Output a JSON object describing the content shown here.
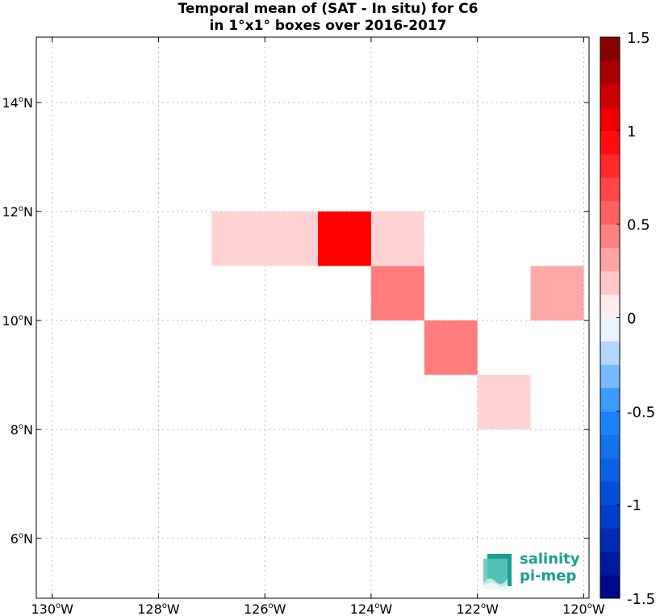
{
  "title_line1": "Temporal mean of (SAT - In situ) for C6",
  "title_line2": "in 1°x1° boxes over 2016-2017",
  "map": {
    "lon_range": [
      -130.3,
      -119.9
    ],
    "lat_range": [
      4.9,
      15.2
    ],
    "lon_ticks": [
      {
        "value": -130,
        "label": "130°W"
      },
      {
        "value": -128,
        "label": "128°W"
      },
      {
        "value": -126,
        "label": "126°W"
      },
      {
        "value": -124,
        "label": "124°W"
      },
      {
        "value": -122,
        "label": "122°W"
      },
      {
        "value": -120,
        "label": "120°W"
      }
    ],
    "lat_ticks": [
      {
        "value": 6,
        "label": "6°N"
      },
      {
        "value": 8,
        "label": "8°N"
      },
      {
        "value": 10,
        "label": "10°N"
      },
      {
        "value": 12,
        "label": "12°N"
      },
      {
        "value": 14,
        "label": "14°N"
      }
    ],
    "grid": true,
    "boxes": [
      {
        "lon": -127,
        "lat": 11,
        "value": 0.15
      },
      {
        "lon": -126,
        "lat": 11,
        "value": 0.15
      },
      {
        "lon": -125,
        "lat": 11,
        "value": 1.0
      },
      {
        "lon": -124,
        "lat": 11,
        "value": 0.15
      },
      {
        "lon": -124,
        "lat": 10,
        "value": 0.45
      },
      {
        "lon": -121,
        "lat": 10,
        "value": 0.3
      },
      {
        "lon": -123,
        "lat": 9,
        "value": 0.45
      },
      {
        "lon": -122,
        "lat": 8,
        "value": 0.15
      }
    ]
  },
  "colorbar": {
    "min": -1.5,
    "max": 1.5,
    "levels": 24,
    "ticks": [
      {
        "value": -1.5,
        "label": "-1.5"
      },
      {
        "value": -1,
        "label": "-1"
      },
      {
        "value": -0.5,
        "label": "-0.5"
      },
      {
        "value": 0,
        "label": "0"
      },
      {
        "value": 0.5,
        "label": "0.5"
      },
      {
        "value": 1,
        "label": "1"
      },
      {
        "value": 1.5,
        "label": "1.5"
      }
    ]
  },
  "logo": {
    "line1": "salinity",
    "line2": "pi-mep"
  }
}
